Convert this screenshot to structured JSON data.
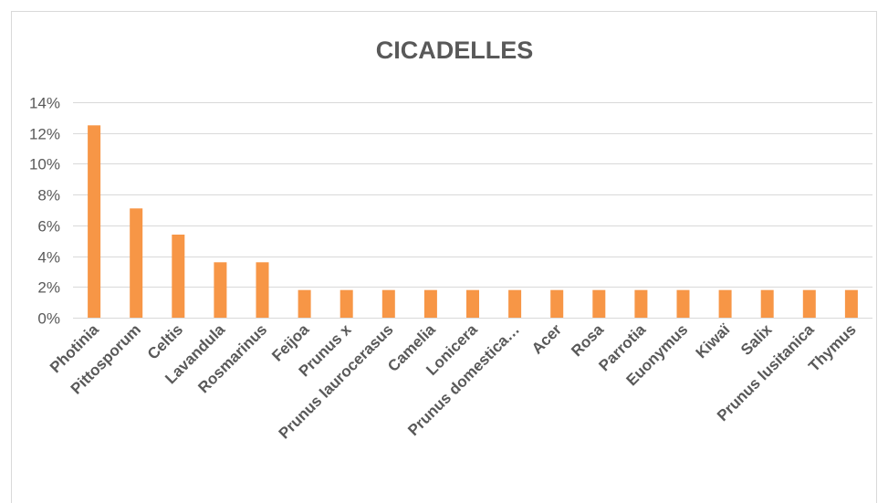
{
  "chart_data": {
    "type": "bar",
    "title": "CICADELLES",
    "xlabel": "",
    "ylabel": "",
    "ylim": [
      0,
      0.14
    ],
    "yticks": [
      0,
      0.02,
      0.04,
      0.06,
      0.08,
      0.1,
      0.12,
      0.14
    ],
    "ytick_labels": [
      "0%",
      "2%",
      "4%",
      "6%",
      "8%",
      "10%",
      "12%",
      "14%"
    ],
    "grid": true,
    "legend": "none",
    "bar_color": "#F79646",
    "categories": [
      "Photinia",
      "Pittosporum",
      "Celtis",
      "Lavandula",
      "Rosmarinus",
      "Feijoa",
      "Prunus x",
      "Prunus laurocerasus",
      "Camelia",
      "Lonicera",
      "Prunus domestica…",
      "Acer",
      "Rosa",
      "Parrotia",
      "Euonymus",
      "Kiwaï",
      "Salix",
      "Prunus lusitanica",
      "Thymus"
    ],
    "values": [
      0.125,
      0.071,
      0.054,
      0.036,
      0.036,
      0.018,
      0.018,
      0.018,
      0.018,
      0.018,
      0.018,
      0.018,
      0.018,
      0.018,
      0.018,
      0.018,
      0.018,
      0.018,
      0.018
    ]
  }
}
